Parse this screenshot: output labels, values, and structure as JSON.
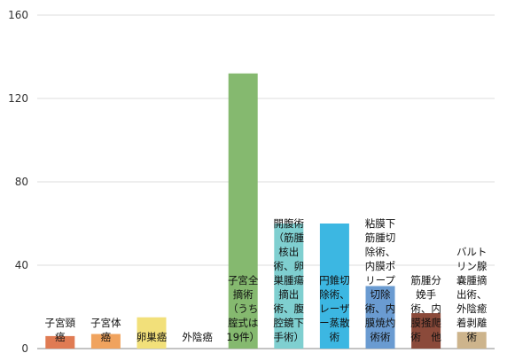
{
  "chart_data": {
    "type": "bar",
    "title": "",
    "xlabel": "",
    "ylabel": "",
    "ylim": [
      0,
      160
    ],
    "yticks": [
      0,
      40,
      80,
      120,
      160
    ],
    "grid": true,
    "legend": "none",
    "categories": [
      [
        "子宮頸",
        "癌"
      ],
      [
        "子宮体",
        "癌"
      ],
      [
        "卵巣癌"
      ],
      [
        "外陰癌"
      ],
      [
        "子宮全",
        "摘術",
        "（うち",
        "腟式は",
        "19件）"
      ],
      [
        "開腹術",
        "（筋腫",
        "核出",
        "術、卵",
        "巣腫瘍",
        "摘出",
        "術、腹",
        "腔鏡下",
        "手術）"
      ],
      [
        "円錐切",
        "除術、",
        "レーザ",
        "ー蒸散",
        "術"
      ],
      [
        "粘膜下",
        "筋腫切",
        "除術、",
        "内膜ポ",
        "リープ",
        "切除",
        "術、内",
        "膜焼灼",
        "術術"
      ],
      [
        "筋腫分",
        "娩手",
        "術、内",
        "膜掻爬",
        "術　他"
      ],
      [
        "バルト",
        "リン腺",
        "嚢腫摘",
        "出術、",
        "外陰癒",
        "着剥離",
        "術"
      ]
    ],
    "values": [
      6,
      7,
      15,
      0,
      132,
      60,
      60,
      30,
      17,
      8
    ],
    "colors": [
      "#e07b53",
      "#f0a35e",
      "#f2e07a",
      "#cccccc",
      "#85b96f",
      "#7fcfd0",
      "#3cb7e2",
      "#6a9bd1",
      "#8b4a3a",
      "#cdb48c"
    ]
  }
}
